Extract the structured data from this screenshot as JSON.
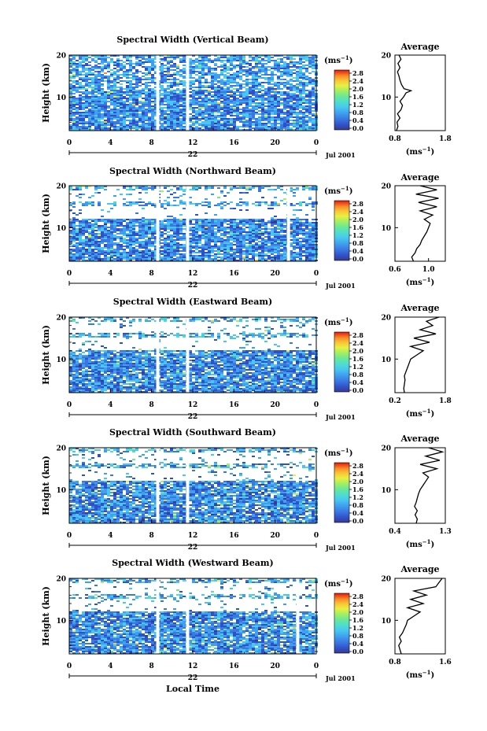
{
  "figure": {
    "xaxis_label": "Local Time",
    "date_label": "Jul 2001",
    "colorbar_unit_base": "(ms",
    "colorbar_unit_exp": "−1",
    "average_unit_base": "(ms",
    "average_unit_exp": "−1",
    "day_label": "22"
  },
  "chart_data": [
    {
      "type": "heatmap",
      "title": "Spectral Width (Vertical Beam)",
      "ylabel": "Height (km)",
      "xlabel": "Local Time",
      "x_ticks": [
        "0",
        "4",
        "8",
        "12",
        "16",
        "20",
        "0"
      ],
      "y_ticks": [
        "20",
        "10"
      ],
      "xlim": [
        0,
        24
      ],
      "ylim": [
        2,
        20
      ],
      "colorbar_ticks": [
        "2.8",
        "2.4",
        "2.0",
        "1.6",
        "1.2",
        "0.8",
        "0.4",
        "0.0"
      ],
      "colorbar_range": [
        0,
        2.8
      ],
      "data_gaps_hours": [
        8.6,
        11.5
      ],
      "average": {
        "title": "Average",
        "xlim": [
          0.8,
          1.8
        ],
        "x_ticks": [
          "0.8",
          "1.8"
        ],
        "y_ticks": [
          "20",
          "10"
        ],
        "profile": [
          [
            0.83,
            2
          ],
          [
            0.86,
            3
          ],
          [
            0.84,
            4
          ],
          [
            0.9,
            5
          ],
          [
            0.85,
            6
          ],
          [
            0.92,
            7
          ],
          [
            0.95,
            8
          ],
          [
            0.9,
            9
          ],
          [
            0.97,
            10
          ],
          [
            1.02,
            11
          ],
          [
            1.12,
            11.5
          ],
          [
            0.98,
            12
          ],
          [
            0.93,
            13
          ],
          [
            0.9,
            14
          ],
          [
            0.88,
            15
          ],
          [
            0.85,
            16
          ],
          [
            0.9,
            17
          ],
          [
            0.86,
            18
          ],
          [
            0.92,
            19
          ],
          [
            0.88,
            20
          ]
        ]
      }
    },
    {
      "type": "heatmap",
      "title": "Spectral Width (Northward Beam)",
      "ylabel": "Height (km)",
      "xlabel": "Local Time",
      "x_ticks": [
        "0",
        "4",
        "8",
        "12",
        "16",
        "20",
        "0"
      ],
      "y_ticks": [
        "20",
        "10"
      ],
      "xlim": [
        0,
        24
      ],
      "ylim": [
        2,
        20
      ],
      "colorbar_ticks": [
        "2.8",
        "2.4",
        "2.0",
        "1.6",
        "1.2",
        "0.8",
        "0.4",
        "0.0"
      ],
      "colorbar_range": [
        0,
        2.8
      ],
      "data_gaps_hours": [
        8.6,
        11.5,
        21.3
      ],
      "average": {
        "title": "Average",
        "xlim": [
          0.6,
          1.2
        ],
        "x_ticks": [
          "0.6",
          "1.0"
        ],
        "y_ticks": [
          "20",
          "10"
        ],
        "profile": [
          [
            0.82,
            2
          ],
          [
            0.8,
            3
          ],
          [
            0.84,
            4
          ],
          [
            0.86,
            5
          ],
          [
            0.9,
            6
          ],
          [
            0.92,
            7
          ],
          [
            0.95,
            8
          ],
          [
            0.98,
            9
          ],
          [
            1.0,
            10
          ],
          [
            1.02,
            11
          ],
          [
            0.95,
            12
          ],
          [
            1.05,
            13
          ],
          [
            0.9,
            14
          ],
          [
            1.1,
            15
          ],
          [
            0.88,
            16
          ],
          [
            1.12,
            17
          ],
          [
            0.85,
            18
          ],
          [
            1.1,
            19
          ],
          [
            0.9,
            20
          ]
        ]
      }
    },
    {
      "type": "heatmap",
      "title": "Spectral Width (Eastward Beam)",
      "ylabel": "Height (km)",
      "xlabel": "Local Time",
      "x_ticks": [
        "0",
        "4",
        "8",
        "12",
        "16",
        "20",
        "0"
      ],
      "y_ticks": [
        "20",
        "10"
      ],
      "xlim": [
        0,
        24
      ],
      "ylim": [
        2,
        20
      ],
      "colorbar_ticks": [
        "2.8",
        "2.4",
        "2.0",
        "1.6",
        "1.2",
        "0.8",
        "0.4",
        "0.0"
      ],
      "colorbar_range": [
        0,
        2.8
      ],
      "data_gaps_hours": [
        8.6,
        11.5
      ],
      "average": {
        "title": "Average",
        "xlim": [
          0.2,
          1.8
        ],
        "x_ticks": [
          "0.2",
          "1.8"
        ],
        "y_ticks": [
          "20",
          "10"
        ],
        "profile": [
          [
            0.5,
            2
          ],
          [
            0.48,
            3
          ],
          [
            0.5,
            4
          ],
          [
            0.52,
            5
          ],
          [
            0.5,
            6
          ],
          [
            0.55,
            7
          ],
          [
            0.6,
            8
          ],
          [
            0.65,
            9
          ],
          [
            0.7,
            10
          ],
          [
            0.9,
            11
          ],
          [
            1.1,
            12
          ],
          [
            0.7,
            13
          ],
          [
            1.3,
            14
          ],
          [
            0.8,
            15
          ],
          [
            1.5,
            16
          ],
          [
            1.0,
            17
          ],
          [
            1.4,
            18
          ],
          [
            1.2,
            19
          ],
          [
            1.6,
            20
          ]
        ]
      }
    },
    {
      "type": "heatmap",
      "title": "Spectral Width (Southward Beam)",
      "ylabel": "Height (km)",
      "xlabel": "Local Time",
      "x_ticks": [
        "0",
        "4",
        "8",
        "12",
        "16",
        "20",
        "0"
      ],
      "y_ticks": [
        "20",
        "10"
      ],
      "xlim": [
        0,
        24
      ],
      "ylim": [
        2,
        20
      ],
      "colorbar_ticks": [
        "2.8",
        "2.4",
        "2.0",
        "1.6",
        "1.2",
        "0.8",
        "0.4",
        "0.0"
      ],
      "colorbar_range": [
        0,
        2.8
      ],
      "data_gaps_hours": [
        8.6,
        11.5
      ],
      "average": {
        "title": "Average",
        "xlim": [
          0.4,
          1.3
        ],
        "x_ticks": [
          "0.4",
          "1.3"
        ],
        "y_ticks": [
          "20",
          "10"
        ],
        "profile": [
          [
            0.78,
            2
          ],
          [
            0.8,
            3
          ],
          [
            0.76,
            4
          ],
          [
            0.8,
            5
          ],
          [
            0.75,
            6
          ],
          [
            0.78,
            7
          ],
          [
            0.8,
            8
          ],
          [
            0.82,
            9
          ],
          [
            0.85,
            10
          ],
          [
            0.9,
            11
          ],
          [
            0.95,
            12
          ],
          [
            1.0,
            13
          ],
          [
            0.9,
            14
          ],
          [
            1.15,
            15
          ],
          [
            0.85,
            16
          ],
          [
            1.2,
            17
          ],
          [
            0.95,
            18
          ],
          [
            1.25,
            19
          ],
          [
            1.0,
            20
          ]
        ]
      }
    },
    {
      "type": "heatmap",
      "title": "Spectral Width (Westward Beam)",
      "ylabel": "Height (km)",
      "xlabel": "Local Time",
      "x_ticks": [
        "0",
        "4",
        "8",
        "12",
        "16",
        "20",
        "0"
      ],
      "y_ticks": [
        "20",
        "10"
      ],
      "xlim": [
        0,
        24
      ],
      "ylim": [
        2,
        20
      ],
      "colorbar_ticks": [
        "2.8",
        "2.4",
        "2.0",
        "1.6",
        "1.2",
        "0.8",
        "0.4",
        "0.0"
      ],
      "colorbar_range": [
        0,
        2.8
      ],
      "data_gaps_hours": [
        8.6,
        11.5,
        22.2
      ],
      "average": {
        "title": "Average",
        "xlim": [
          0.8,
          1.6
        ],
        "x_ticks": [
          "0.8",
          "1.6"
        ],
        "y_ticks": [
          "20",
          "10"
        ],
        "profile": [
          [
            0.9,
            2
          ],
          [
            0.88,
            3
          ],
          [
            0.86,
            4
          ],
          [
            0.9,
            5
          ],
          [
            0.87,
            6
          ],
          [
            0.92,
            7
          ],
          [
            0.95,
            8
          ],
          [
            0.98,
            9
          ],
          [
            1.0,
            10
          ],
          [
            1.1,
            11
          ],
          [
            1.2,
            12
          ],
          [
            1.0,
            13
          ],
          [
            1.25,
            14
          ],
          [
            1.05,
            15
          ],
          [
            1.3,
            16
          ],
          [
            1.1,
            17
          ],
          [
            1.45,
            18
          ],
          [
            1.5,
            19
          ],
          [
            1.55,
            20
          ]
        ]
      }
    }
  ],
  "colors": {
    "colormap": [
      "#3a3a8c",
      "#3050c8",
      "#3a78e0",
      "#40a0f0",
      "#48c8f0",
      "#50e0c8",
      "#70e890",
      "#a8f060",
      "#e8f040",
      "#f8c838",
      "#f89028",
      "#f04818",
      "#d81810"
    ]
  }
}
